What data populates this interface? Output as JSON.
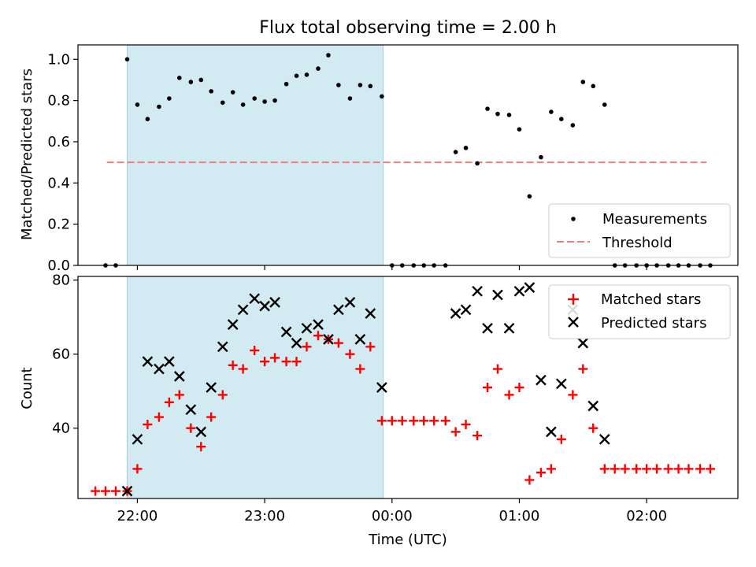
{
  "chart_data": [
    {
      "type": "scatter",
      "title": "Flux total observing time = 2.00 h",
      "ylabel": "Matched/Predicted stars",
      "xlabel": "",
      "x_unit": "hours UTC (24 = 00:00)",
      "xlim": [
        "21:32",
        "02:43"
      ],
      "ylim": [
        0,
        1.07
      ],
      "yticks": [
        0.0,
        0.2,
        0.4,
        0.6,
        0.8,
        1.0
      ],
      "ytick_labels": [
        "0.0",
        "0.2",
        "0.4",
        "0.6",
        "0.8",
        "1.0"
      ],
      "xticks": [
        22,
        23,
        24,
        25,
        26
      ],
      "shaded_interval": [
        21.92,
        23.93
      ],
      "shade_color": "#add8e6",
      "threshold": {
        "name": "Threshold",
        "value": 0.5,
        "x": [
          21.76,
          26.47
        ],
        "color": "#f08080",
        "style": "dashed"
      },
      "legend": {
        "position": "lower right",
        "entries": [
          "Measurements",
          "Threshold"
        ]
      },
      "series": [
        {
          "name": "Measurements",
          "marker": "dot",
          "color": "#000000",
          "points": [
            [
              21.75,
              0.0
            ],
            [
              21.83,
              0.0
            ],
            [
              21.92,
              1.0
            ],
            [
              22.0,
              0.78
            ],
            [
              22.08,
              0.71
            ],
            [
              22.17,
              0.77
            ],
            [
              22.25,
              0.81
            ],
            [
              22.33,
              0.91
            ],
            [
              22.42,
              0.89
            ],
            [
              22.5,
              0.9
            ],
            [
              22.58,
              0.845
            ],
            [
              22.67,
              0.79
            ],
            [
              22.75,
              0.84
            ],
            [
              22.83,
              0.78
            ],
            [
              22.92,
              0.81
            ],
            [
              23.0,
              0.795
            ],
            [
              23.08,
              0.8
            ],
            [
              23.17,
              0.88
            ],
            [
              23.25,
              0.92
            ],
            [
              23.33,
              0.925
            ],
            [
              23.42,
              0.955
            ],
            [
              23.5,
              1.02
            ],
            [
              23.58,
              0.875
            ],
            [
              23.67,
              0.81
            ],
            [
              23.75,
              0.875
            ],
            [
              23.83,
              0.87
            ],
            [
              23.92,
              0.82
            ],
            [
              24.0,
              0.0
            ],
            [
              24.08,
              0.0
            ],
            [
              24.17,
              0.0
            ],
            [
              24.25,
              0.0
            ],
            [
              24.33,
              0.0
            ],
            [
              24.42,
              0.0
            ],
            [
              24.5,
              0.55
            ],
            [
              24.58,
              0.57
            ],
            [
              24.67,
              0.495
            ],
            [
              24.75,
              0.76
            ],
            [
              24.83,
              0.735
            ],
            [
              24.92,
              0.73
            ],
            [
              25.0,
              0.66
            ],
            [
              25.08,
              0.335
            ],
            [
              25.17,
              0.525
            ],
            [
              25.25,
              0.745
            ],
            [
              25.33,
              0.71
            ],
            [
              25.42,
              0.68
            ],
            [
              25.5,
              0.89
            ],
            [
              25.58,
              0.87
            ],
            [
              25.67,
              0.78
            ],
            [
              25.75,
              0.0
            ],
            [
              25.83,
              0.0
            ],
            [
              25.92,
              0.0
            ],
            [
              26.0,
              0.0
            ],
            [
              26.08,
              0.0
            ],
            [
              26.17,
              0.0
            ],
            [
              26.25,
              0.0
            ],
            [
              26.33,
              0.0
            ],
            [
              26.42,
              0.0
            ],
            [
              26.5,
              0.0
            ]
          ]
        }
      ]
    },
    {
      "type": "scatter",
      "title": "",
      "ylabel": "Count",
      "xlabel": "Time (UTC)",
      "x_unit": "hours UTC (24 = 00:00)",
      "xlim": [
        "21:32",
        "02:43"
      ],
      "ylim": [
        21,
        81
      ],
      "yticks": [
        40,
        60,
        80
      ],
      "ytick_labels": [
        "40",
        "60",
        "80"
      ],
      "xticks": [
        22,
        23,
        24,
        25,
        26
      ],
      "xtick_labels": [
        "22:00",
        "23:00",
        "00:00",
        "01:00",
        "02:00"
      ],
      "shaded_interval": [
        21.92,
        23.93
      ],
      "shade_color": "#add8e6",
      "legend": {
        "position": "upper right",
        "entries": [
          "Matched stars",
          "Predicted stars"
        ]
      },
      "series": [
        {
          "name": "Matched stars",
          "marker": "plus",
          "color": "#ff0000",
          "points": [
            [
              21.67,
              23
            ],
            [
              21.75,
              23
            ],
            [
              21.83,
              23
            ],
            [
              21.92,
              23
            ],
            [
              22.0,
              29
            ],
            [
              22.08,
              41
            ],
            [
              22.17,
              43
            ],
            [
              22.25,
              47
            ],
            [
              22.33,
              49
            ],
            [
              22.42,
              40
            ],
            [
              22.5,
              35
            ],
            [
              22.58,
              43
            ],
            [
              22.67,
              49
            ],
            [
              22.75,
              57
            ],
            [
              22.83,
              56
            ],
            [
              22.92,
              61
            ],
            [
              23.0,
              58
            ],
            [
              23.08,
              59
            ],
            [
              23.17,
              58
            ],
            [
              23.25,
              58
            ],
            [
              23.33,
              62
            ],
            [
              23.42,
              65
            ],
            [
              23.5,
              64
            ],
            [
              23.58,
              63
            ],
            [
              23.67,
              60
            ],
            [
              23.75,
              56
            ],
            [
              23.83,
              62
            ],
            [
              23.92,
              42
            ],
            [
              24.0,
              42
            ],
            [
              24.08,
              42
            ],
            [
              24.17,
              42
            ],
            [
              24.25,
              42
            ],
            [
              24.33,
              42
            ],
            [
              24.42,
              42
            ],
            [
              24.5,
              39
            ],
            [
              24.58,
              41
            ],
            [
              24.67,
              38
            ],
            [
              24.75,
              51
            ],
            [
              24.83,
              56
            ],
            [
              24.92,
              49
            ],
            [
              25.0,
              51
            ],
            [
              25.08,
              26
            ],
            [
              25.17,
              28
            ],
            [
              25.25,
              29
            ],
            [
              25.33,
              37
            ],
            [
              25.42,
              49
            ],
            [
              25.5,
              56
            ],
            [
              25.58,
              40
            ],
            [
              25.67,
              29
            ],
            [
              25.75,
              29
            ],
            [
              25.83,
              29
            ],
            [
              25.92,
              29
            ],
            [
              26.0,
              29
            ],
            [
              26.08,
              29
            ],
            [
              26.17,
              29
            ],
            [
              26.25,
              29
            ],
            [
              26.33,
              29
            ],
            [
              26.42,
              29
            ],
            [
              26.5,
              29
            ]
          ]
        },
        {
          "name": "Predicted stars",
          "marker": "x",
          "color": "#000000",
          "points": [
            [
              21.92,
              23
            ],
            [
              22.0,
              37
            ],
            [
              22.08,
              58
            ],
            [
              22.17,
              56
            ],
            [
              22.25,
              58
            ],
            [
              22.33,
              54
            ],
            [
              22.42,
              45
            ],
            [
              22.5,
              39
            ],
            [
              22.58,
              51
            ],
            [
              22.67,
              62
            ],
            [
              22.75,
              68
            ],
            [
              22.83,
              72
            ],
            [
              22.92,
              75
            ],
            [
              23.0,
              73
            ],
            [
              23.08,
              74
            ],
            [
              23.17,
              66
            ],
            [
              23.25,
              63
            ],
            [
              23.33,
              67
            ],
            [
              23.42,
              68
            ],
            [
              23.5,
              64
            ],
            [
              23.58,
              72
            ],
            [
              23.67,
              74
            ],
            [
              23.75,
              64
            ],
            [
              23.83,
              71
            ],
            [
              23.92,
              51
            ],
            [
              24.5,
              71
            ],
            [
              24.58,
              72
            ],
            [
              24.67,
              77
            ],
            [
              24.75,
              67
            ],
            [
              24.83,
              76
            ],
            [
              24.92,
              67
            ],
            [
              25.0,
              77
            ],
            [
              25.08,
              78
            ],
            [
              25.17,
              53
            ],
            [
              25.25,
              39
            ],
            [
              25.33,
              52
            ],
            [
              25.42,
              72
            ],
            [
              25.5,
              63
            ],
            [
              25.58,
              46
            ],
            [
              25.67,
              37
            ]
          ]
        }
      ]
    }
  ]
}
